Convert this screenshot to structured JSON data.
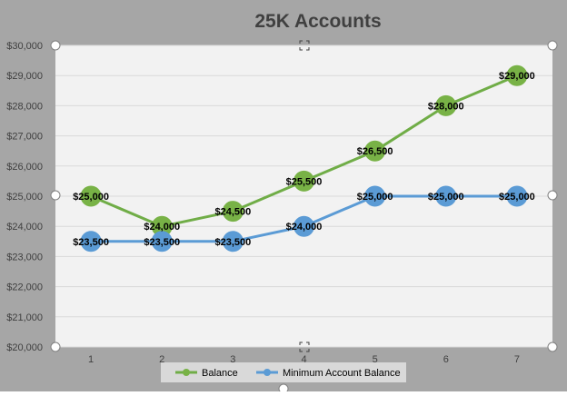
{
  "chart_data": {
    "type": "line",
    "title": "25K Accounts",
    "xlabel": "",
    "ylabel": "",
    "categories": [
      "1",
      "2",
      "3",
      "4",
      "5",
      "6",
      "7"
    ],
    "ylim": [
      20000,
      30000
    ],
    "y_ticks": [
      "$20,000",
      "$21,000",
      "$22,000",
      "$23,000",
      "$24,000",
      "$25,000",
      "$26,000",
      "$27,000",
      "$28,000",
      "$29,000",
      "$30,000"
    ],
    "grid": true,
    "legend_position": "bottom",
    "series": [
      {
        "name": "Balance",
        "color": "#70ad47",
        "marker_color": "#78b246",
        "values": [
          25000,
          24000,
          24500,
          25500,
          26500,
          28000,
          29000
        ],
        "labels": [
          "$25,000",
          "$24,000",
          "$24,500",
          "$25,500",
          "$26,500",
          "$28,000",
          "$29,000"
        ]
      },
      {
        "name": "Minimum Account Balance",
        "color": "#5b9bd5",
        "marker_color": "#5b9bd5",
        "values": [
          23500,
          23500,
          23500,
          24000,
          25000,
          25000,
          25000
        ],
        "labels": [
          "$23,500",
          "$23,500",
          "$23,500",
          "$24,000",
          "$25,000",
          "$25,000",
          "$25,000"
        ]
      }
    ]
  }
}
